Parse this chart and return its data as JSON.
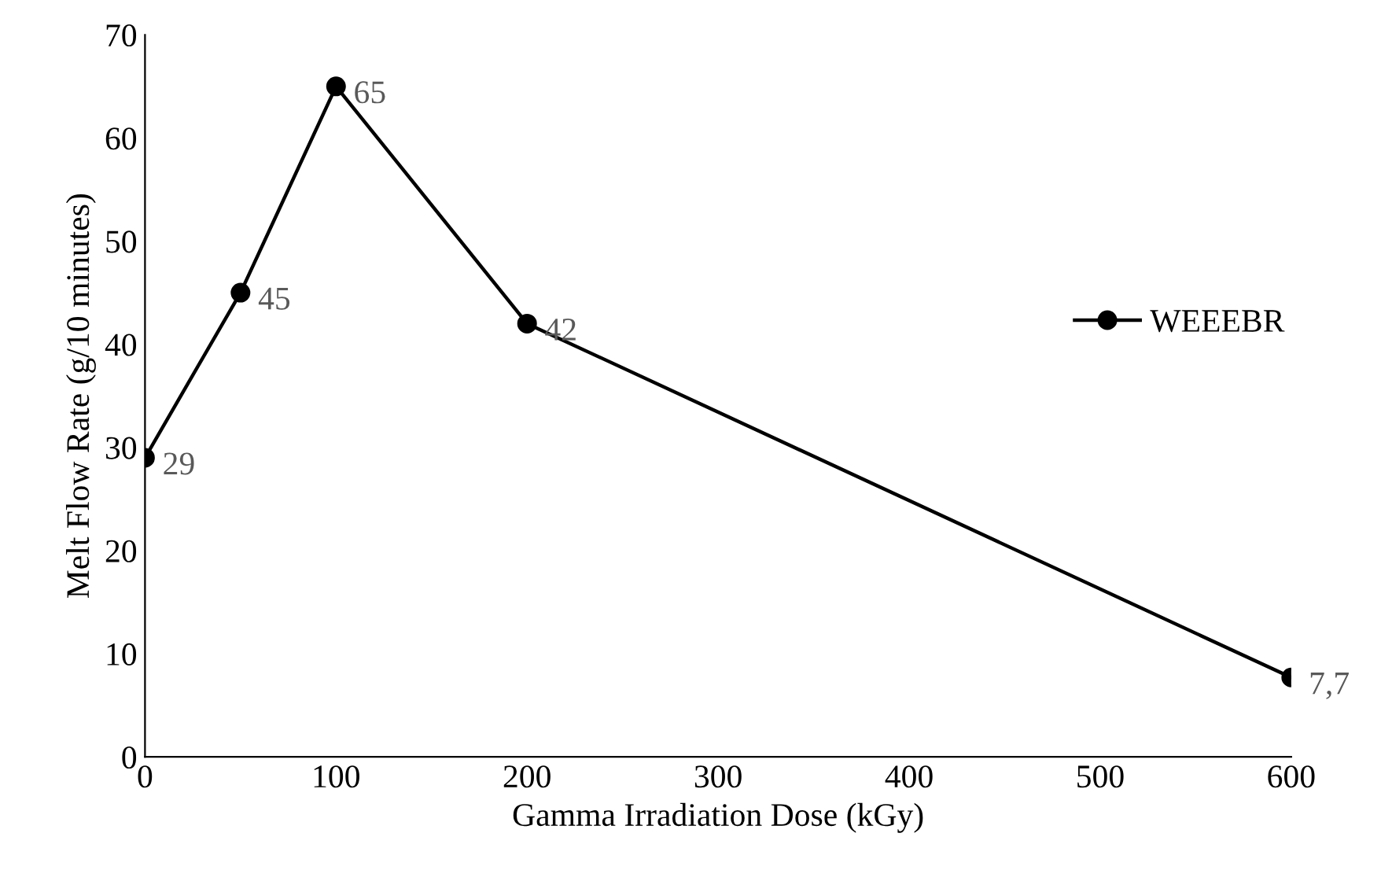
{
  "chart_data": {
    "type": "line",
    "xlabel": "Gamma Irradiation Dose (kGy)",
    "ylabel": "Melt Flow Rate (g/10 minutes)",
    "x": [
      0,
      50,
      100,
      200,
      600
    ],
    "series": [
      {
        "name": "WEEEBR",
        "color": "#000000",
        "values": [
          29,
          45,
          65,
          42,
          7.7
        ],
        "value_labels": [
          "29",
          "45",
          "65",
          "42",
          "7,7"
        ]
      }
    ],
    "xlim": [
      0,
      600
    ],
    "xticks": [
      0,
      100,
      200,
      300,
      400,
      500,
      600
    ],
    "ylim": [
      0,
      70
    ],
    "yticks": [
      0,
      10,
      20,
      30,
      40,
      50,
      60,
      70
    ],
    "grid": false,
    "legend": "right",
    "marker": "circle",
    "line_style": "solid"
  }
}
